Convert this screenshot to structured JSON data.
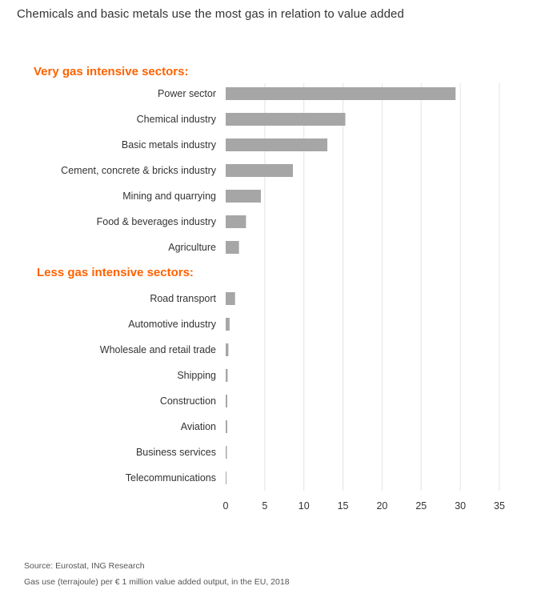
{
  "title": "Chemicals and basic metals use the most gas in relation to value added",
  "source": "Source: Eurostat, ING Research",
  "note": "Gas use (terrajoule) per € 1 million value added output, in the EU, 2018",
  "colors": {
    "bar": "#A6A6A6",
    "heading": "#FF6200",
    "grid": "#E3E3E3"
  },
  "chart_data": {
    "type": "bar",
    "orientation": "horizontal",
    "xlim": [
      0,
      35
    ],
    "xticks": [
      0,
      5,
      10,
      15,
      20,
      25,
      30,
      35
    ],
    "grid": true,
    "groups": [
      {
        "heading": "Very gas intensive sectors:",
        "categories": [
          "Power sector",
          "Chemical industry",
          "Basic metals industry",
          "Cement, concrete & bricks industry",
          "Mining and quarrying",
          "Food & beverages industry",
          "Agriculture"
        ],
        "values": [
          29.4,
          15.3,
          13.0,
          8.6,
          4.5,
          2.6,
          1.7
        ]
      },
      {
        "heading": "Less gas intensive sectors:",
        "categories": [
          "Road transport",
          "Automotive industry",
          "Wholesale and retail trade",
          "Shipping",
          "Construction",
          "Aviation",
          "Business services",
          "Telecommunications"
        ],
        "values": [
          1.2,
          0.5,
          0.35,
          0.25,
          0.2,
          0.2,
          0.15,
          0.1
        ]
      }
    ]
  }
}
